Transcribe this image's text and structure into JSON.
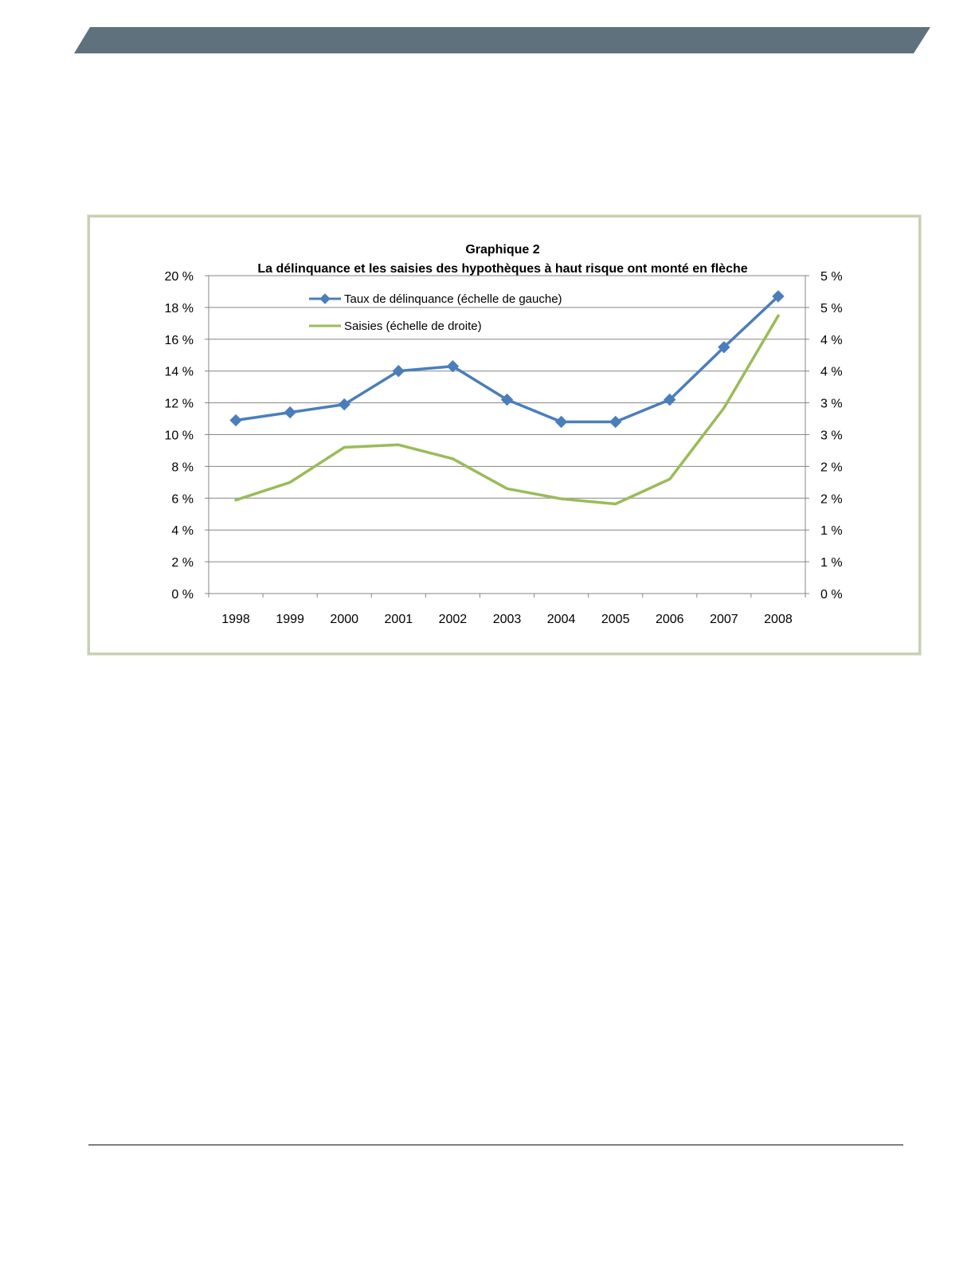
{
  "colors": {
    "banner": "#5f717c",
    "delinquency_series": "#4a7ebb",
    "foreclosure_series": "#9bbb59",
    "gridline": "#868686",
    "frame_border": "#c8d1b2",
    "footer_rule": "#7f7f7f"
  },
  "chart_data": {
    "type": "line",
    "title": "Graphique 2",
    "subtitle": "La délinquance et les saisies des hypothèques à haut risque ont monté en flèche",
    "categories": [
      "1998",
      "1999",
      "2000",
      "2001",
      "2002",
      "2003",
      "2004",
      "2005",
      "2006",
      "2007",
      "2008"
    ],
    "left_axis": {
      "ylim": [
        0,
        20
      ],
      "ticks": [
        0,
        2,
        4,
        6,
        8,
        10,
        12,
        14,
        16,
        18,
        20
      ],
      "tick_labels": [
        "0 %",
        "2 %",
        "4 %",
        "6 %",
        "8 %",
        "10 %",
        "12 %",
        "14 %",
        "16 %",
        "18 %",
        "20 %"
      ]
    },
    "right_axis": {
      "ylim": [
        0,
        5
      ],
      "ticks": [
        0,
        0.5,
        1,
        1.5,
        2,
        2.5,
        3,
        3.5,
        4,
        4.5,
        5
      ],
      "tick_labels": [
        "0 %",
        "1 %",
        "1 %",
        "2 %",
        "2 %",
        "3 %",
        "3 %",
        "4 %",
        "4 %",
        "5 %",
        "5 %"
      ]
    },
    "grid": true,
    "legend_position": "top-center",
    "series": [
      {
        "name": "Taux de délinquance (échelle de gauche)",
        "axis": "left",
        "marker": "diamond",
        "values": [
          10.9,
          11.4,
          11.9,
          14.0,
          14.3,
          12.2,
          10.8,
          10.8,
          12.2,
          15.5,
          18.7
        ]
      },
      {
        "name": "Saisies (échelle de droite)",
        "axis": "right",
        "marker": "none",
        "values": [
          1.47,
          1.75,
          2.3,
          2.34,
          2.12,
          1.65,
          1.49,
          1.41,
          1.8,
          2.92,
          4.37
        ]
      }
    ]
  }
}
